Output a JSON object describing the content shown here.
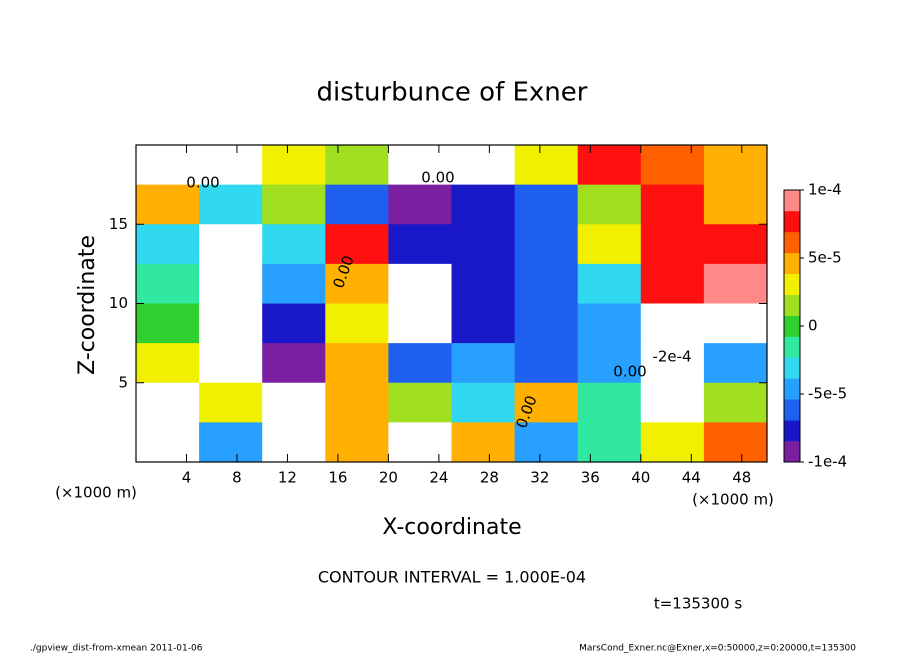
{
  "chart_data": {
    "type": "contour",
    "title": "disturbunce of Exner",
    "xlabel": "X-coordinate",
    "ylabel": "Z-coordinate",
    "x_unit": "(×1000 m)",
    "y_unit": "(×1000 m)",
    "xlim": [
      0,
      50
    ],
    "ylim": [
      0,
      20
    ],
    "xticks": [
      4,
      8,
      12,
      16,
      20,
      24,
      28,
      32,
      36,
      40,
      44,
      48
    ],
    "yticks": [
      5,
      10,
      15
    ],
    "x": [
      2.5,
      7.5,
      12.5,
      17.5,
      22.5,
      27.5,
      32.5,
      37.5,
      42.5,
      47.5
    ],
    "y": [
      18.75,
      16.25,
      13.75,
      11.25,
      8.75,
      6.25,
      3.75,
      1.25
    ],
    "z": [
      [
        0.00015,
        0.00012,
        3e-05,
        2e-05,
        0.00015,
        0.00015,
        3e-05,
        8e-05,
        6e-05,
        4e-05
      ],
      [
        5e-05,
        -3e-05,
        1e-05,
        -6e-05,
        -0.0001,
        -8e-05,
        -6e-05,
        2e-05,
        7e-05,
        4e-05
      ],
      [
        -3e-05,
        -0.00015,
        -3e-05,
        7e-05,
        -7e-05,
        -7e-05,
        -6e-05,
        3e-05,
        8e-05,
        8e-05
      ],
      [
        -2e-05,
        -0.00015,
        -4e-05,
        5e-05,
        -0.00015,
        -8e-05,
        -6e-05,
        -3e-05,
        7e-05,
        9e-05
      ],
      [
        0,
        -0.00018,
        -8e-05,
        3e-05,
        -0.00015,
        -8e-05,
        -6e-05,
        -4e-05,
        -0.00015,
        -0.00016
      ],
      [
        3e-05,
        -0.00017,
        -0.0001,
        4e-05,
        -6e-05,
        -4e-05,
        -6e-05,
        -4e-05,
        -0.00012,
        -5e-05
      ],
      [
        0.0002,
        3e-05,
        0.00012,
        4e-05,
        2e-05,
        -3e-05,
        4e-05,
        -2e-05,
        -0.00015,
        2e-05
      ],
      [
        0.00015,
        -5e-05,
        0.0002,
        4e-05,
        -0.00025,
        4e-05,
        -5e-05,
        -2e-05,
        3e-05,
        6e-05
      ]
    ],
    "zlim": [
      -0.0001,
      0.0001
    ],
    "zticks": [
      {
        "value": 0.0001,
        "label": "1e-4"
      },
      {
        "value": 5e-05,
        "label": "5e-5"
      },
      0,
      {
        "value": -5e-05,
        "label": "-5e-5"
      },
      {
        "value": -0.0001,
        "label": "-1e-4"
      }
    ],
    "colormap": [
      "#7a1fa0",
      "#1818c8",
      "#2060f0",
      "#28a0ff",
      "#30d8f0",
      "#30e8a0",
      "#30d030",
      "#a0e020",
      "#f0f000",
      "#ffb000",
      "#ff6000",
      "#ff1010",
      "#ff8888"
    ],
    "contour_labels": [
      "0.00",
      "0.00",
      "0.00",
      "0.00",
      "-2e-4",
      "0.00"
    ],
    "contour_interval": "CONTOUR INTERVAL = 1.000E-04",
    "time_label": "t=135300 s",
    "footer_left": "./gpview_dist-from-xmean  2011-01-06",
    "footer_right": "MarsCond_Exner.nc@Exner,x=0:50000,z=0:20000,t=135300"
  }
}
